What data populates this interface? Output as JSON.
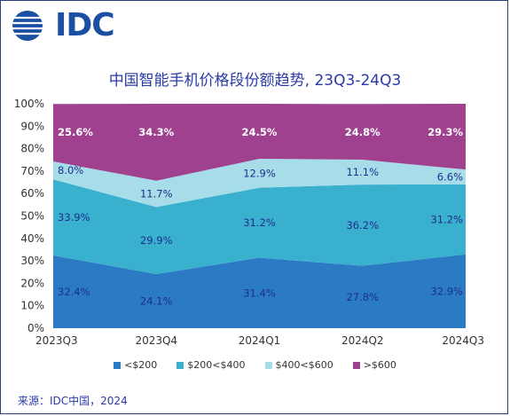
{
  "logo": {
    "text": "IDC"
  },
  "source": "来源：IDC中国，2024",
  "colors": {
    "s1": "#2a7bc4",
    "s2": "#3ab0cf",
    "s3": "#a7dce9",
    "s4": "#a0418f",
    "label_dark": "#1f2e8c",
    "label_light": "#ffffff"
  },
  "chart_data": {
    "type": "area",
    "stacked": true,
    "title": "中国智能手机价格段份额趋势, 23Q3-24Q3",
    "categories": [
      "2023Q3",
      "2023Q4",
      "2024Q1",
      "2024Q2",
      "2024Q3"
    ],
    "y_ticks": [
      "0%",
      "10%",
      "20%",
      "30%",
      "40%",
      "50%",
      "60%",
      "70%",
      "80%",
      "90%",
      "100%"
    ],
    "ylim": [
      0,
      100
    ],
    "legend_position": "bottom",
    "series": [
      {
        "name": "<$200",
        "values": [
          32.4,
          24.1,
          31.4,
          27.8,
          32.9
        ],
        "labels": [
          "32.4%",
          "24.1%",
          "31.4%",
          "27.8%",
          "32.9%"
        ]
      },
      {
        "name": "$200<$400",
        "values": [
          33.9,
          29.9,
          31.2,
          36.2,
          31.2
        ],
        "labels": [
          "33.9%",
          "29.9%",
          "31.2%",
          "36.2%",
          "31.2%"
        ]
      },
      {
        "name": "$400<$600",
        "values": [
          8.0,
          11.7,
          12.9,
          11.1,
          6.6
        ],
        "labels": [
          "8.0%",
          "11.7%",
          "12.9%",
          "11.1%",
          "6.6%"
        ]
      },
      {
        "name": ">$600",
        "values": [
          25.6,
          34.3,
          24.5,
          24.8,
          29.3
        ],
        "labels": [
          "25.6%",
          "34.3%",
          "24.5%",
          "24.8%",
          "29.3%"
        ]
      }
    ]
  }
}
